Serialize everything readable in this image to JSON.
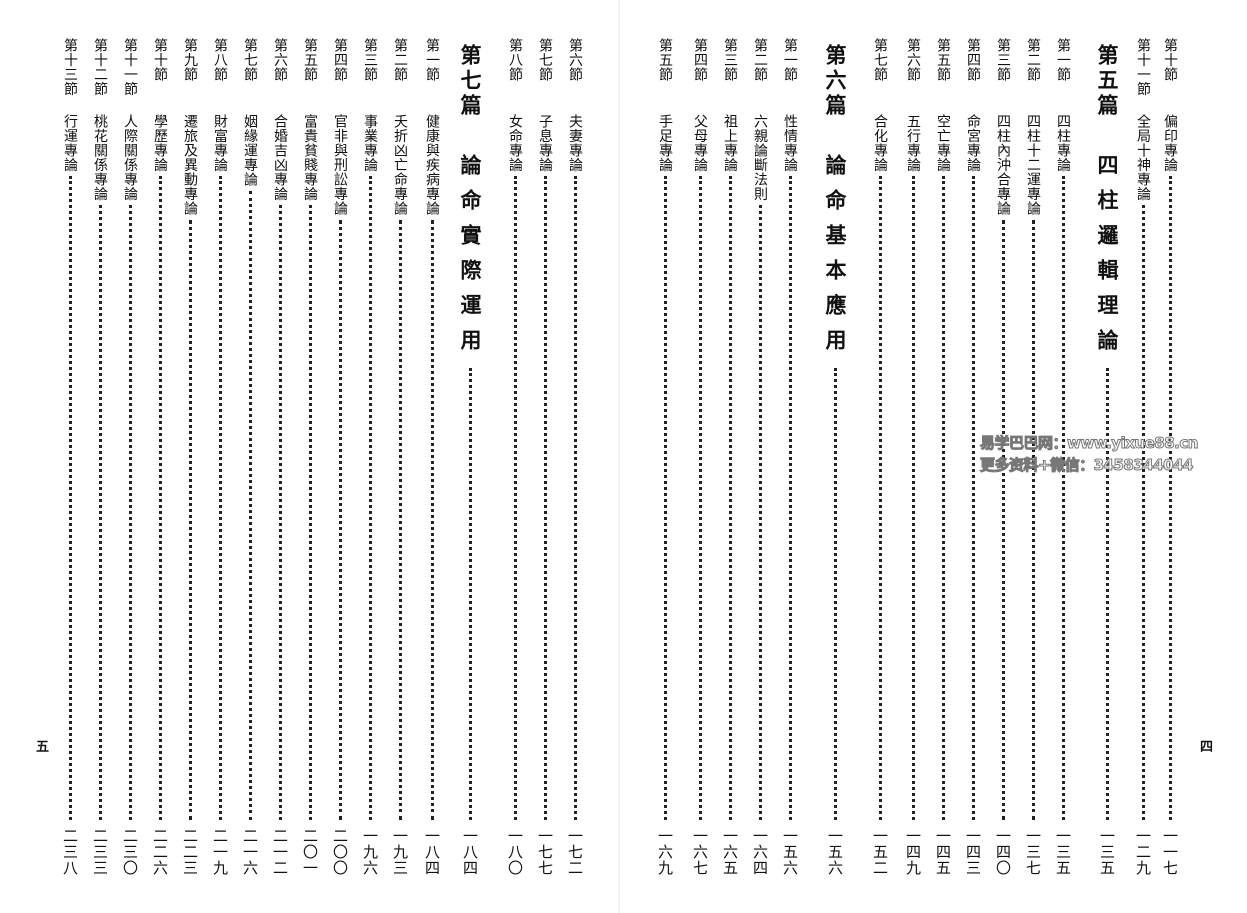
{
  "right_page": {
    "folio": "四",
    "entries": [
      {
        "type": "section",
        "label": "第十節",
        "title": "偏印專論",
        "page": "一一七"
      },
      {
        "type": "section",
        "label": "第十一節",
        "title": "全局十神專論",
        "page": "一二九"
      },
      {
        "type": "part",
        "label": "第五篇",
        "title": "四柱邏輯理論",
        "page": "一三五"
      },
      {
        "type": "section",
        "label": "第一節",
        "title": "四柱專論",
        "page": "一三五"
      },
      {
        "type": "section",
        "label": "第二節",
        "title": "四柱十二運專論",
        "page": "一三七"
      },
      {
        "type": "section",
        "label": "第三節",
        "title": "四柱內沖合專論",
        "page": "一四〇"
      },
      {
        "type": "section",
        "label": "第四節",
        "title": "命宮專論",
        "page": "一四三"
      },
      {
        "type": "section",
        "label": "第五節",
        "title": "空亡專論",
        "page": "一四五"
      },
      {
        "type": "section",
        "label": "第六節",
        "title": "五行專論",
        "page": "一四九"
      },
      {
        "type": "section",
        "label": "第七節",
        "title": "合化專論",
        "page": "一五二"
      },
      {
        "type": "part",
        "label": "第六篇",
        "title": "論命基本應用",
        "page": "一五六"
      },
      {
        "type": "section",
        "label": "第一節",
        "title": "性情專論",
        "page": "一五六"
      },
      {
        "type": "section",
        "label": "第二節",
        "title": "六親論斷法則",
        "page": "一六四"
      },
      {
        "type": "section",
        "label": "第三節",
        "title": "祖上專論",
        "page": "一六五"
      },
      {
        "type": "section",
        "label": "第四節",
        "title": "父母專論",
        "page": "一六七"
      },
      {
        "type": "section",
        "label": "第五節",
        "title": "手足專論",
        "page": "一六九"
      }
    ]
  },
  "left_page": {
    "folio": "五",
    "entries": [
      {
        "type": "section",
        "label": "第六節",
        "title": "夫妻專論",
        "page": "一七二"
      },
      {
        "type": "section",
        "label": "第七節",
        "title": "子息專論",
        "page": "一七七"
      },
      {
        "type": "section",
        "label": "第八節",
        "title": "女命專論",
        "page": "一八〇"
      },
      {
        "type": "part",
        "label": "第七篇",
        "title": "論命實際運用",
        "page": "一八四"
      },
      {
        "type": "section",
        "label": "第一節",
        "title": "健康與疾病專論",
        "page": "一八四"
      },
      {
        "type": "section",
        "label": "第二節",
        "title": "夭折凶亡命專論",
        "page": "一九三"
      },
      {
        "type": "section",
        "label": "第三節",
        "title": "事業專論",
        "page": "一九六"
      },
      {
        "type": "section",
        "label": "第四節",
        "title": "官非與刑訟專論",
        "page": "二〇〇"
      },
      {
        "type": "section",
        "label": "第五節",
        "title": "富貴貧賤專論",
        "page": "二〇一"
      },
      {
        "type": "section",
        "label": "第六節",
        "title": "合婚吉凶專論",
        "page": "二一二"
      },
      {
        "type": "section",
        "label": "第七節",
        "title": "姻緣運專論",
        "page": "二一六"
      },
      {
        "type": "section",
        "label": "第八節",
        "title": "財富專論",
        "page": "二一九"
      },
      {
        "type": "section",
        "label": "第九節",
        "title": "遷旅及異動專論",
        "page": "二二三"
      },
      {
        "type": "section",
        "label": "第十節",
        "title": "學歷專論",
        "page": "二二六"
      },
      {
        "type": "section",
        "label": "第十一節",
        "title": "人際關係專論",
        "page": "二三〇"
      },
      {
        "type": "section",
        "label": "第十二節",
        "title": "桃花關係專論",
        "page": "二三三"
      },
      {
        "type": "section",
        "label": "第十三節",
        "title": "行運專論",
        "page": "二三八"
      }
    ]
  },
  "watermark": {
    "line1": "易学巴巴网：www.yixue88.cn",
    "line2": "更多资料+微信：3458344044"
  }
}
